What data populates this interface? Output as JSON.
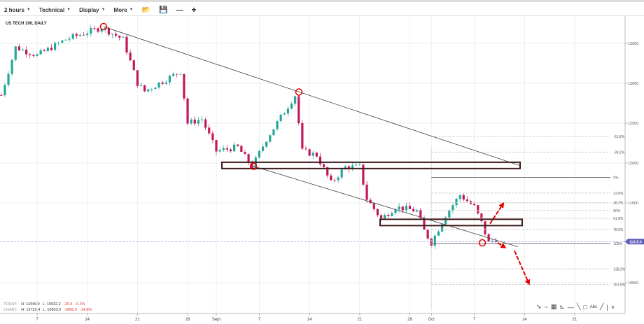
{
  "toolbar": {
    "timeframe": "2 hours",
    "technical": "Technical",
    "display": "Display",
    "more": "More",
    "icons": [
      "folder-open-icon",
      "save-icon",
      "minus-icon",
      "plus-icon"
    ]
  },
  "chart_title": "US TECH 100, DAILY",
  "stats": {
    "today_label": "TODAY:",
    "today_h": "H: 11049.9",
    "today_l": "L: 10932.2",
    "today_chg": "-29.4",
    "today_pct": "-0.3%",
    "chart_label": "CHART:",
    "chart_h": "H: 13722.4",
    "chart_l": "L: 10833.0",
    "chart_chg": "-1886.5",
    "chart_pct": "-14.6%"
  },
  "colors": {
    "up": "#26a69a",
    "down": "#c2185b",
    "annotation": "#e00000",
    "box": "#3b1a1a",
    "price_tag": "#5c5cb8"
  },
  "drawing_tools": [
    "arrow-icon",
    "curve-icon",
    "grid-icon",
    "fan-icon",
    "horizontal-line-icon",
    "trend-line-icon",
    "rectangle-icon",
    "text-icon",
    "line-icon",
    "divider",
    "close-icon"
  ],
  "drawing_tool_glyphs": [
    "➘",
    "~",
    "▦",
    "⊾",
    "—",
    "╲",
    "□",
    "Abc",
    "╱",
    "|",
    "×"
  ],
  "chart_data": {
    "type": "candlestick",
    "title": "US TECH 100, DAILY",
    "y_ticks": [
      13500,
      13000,
      12500,
      12000,
      11500,
      10500
    ],
    "x_ticks": [
      {
        "label": "7",
        "date": "2017-08-07"
      },
      {
        "label": "14",
        "date": "2017-08-14"
      },
      {
        "label": "21",
        "date": "2017-08-21"
      },
      {
        "label": "28",
        "date": "2017-08-28"
      },
      {
        "label": "Sept",
        "date": "2017-09-01"
      },
      {
        "label": "7",
        "date": "2017-09-07"
      },
      {
        "label": "14",
        "date": "2017-09-14"
      },
      {
        "label": "21",
        "date": "2017-09-21"
      },
      {
        "label": "28",
        "date": "2017-09-28"
      },
      {
        "label": "Oct",
        "date": "2017-10-01"
      },
      {
        "label": "7",
        "date": "2017-10-07"
      },
      {
        "label": "14",
        "date": "2017-10-14"
      },
      {
        "label": "21",
        "date": "2017-10-21"
      }
    ],
    "price_path": [
      [
        "2017-08-02",
        12850
      ],
      [
        "2017-08-04",
        13450
      ],
      [
        "2017-08-07",
        13350
      ],
      [
        "2017-08-11",
        13550
      ],
      [
        "2017-08-16",
        13700
      ],
      [
        "2017-08-19",
        13550
      ],
      [
        "2017-08-21",
        13000
      ],
      [
        "2017-08-22",
        12900
      ],
      [
        "2017-08-27",
        13150
      ],
      [
        "2017-08-28",
        12500
      ],
      [
        "2017-08-30",
        12550
      ],
      [
        "2017-09-01",
        12150
      ],
      [
        "2017-09-04",
        12200
      ],
      [
        "2017-09-06",
        11950
      ],
      [
        "2017-09-08",
        12300
      ],
      [
        "2017-09-12",
        12850
      ],
      [
        "2017-09-13",
        12150
      ],
      [
        "2017-09-15",
        12100
      ],
      [
        "2017-09-17",
        11750
      ],
      [
        "2017-09-19",
        11950
      ],
      [
        "2017-09-21",
        11950
      ],
      [
        "2017-09-22",
        11550
      ],
      [
        "2017-09-24",
        11300
      ],
      [
        "2017-09-26",
        11450
      ],
      [
        "2017-09-29",
        11400
      ],
      [
        "2017-09-30",
        11150
      ],
      [
        "2017-10-01",
        11000
      ],
      [
        "2017-10-03",
        11350
      ],
      [
        "2017-10-05",
        11600
      ],
      [
        "2017-10-07",
        11450
      ],
      [
        "2017-10-08",
        11250
      ],
      [
        "2017-10-09",
        11000
      ],
      [
        "2017-10-10",
        11050
      ]
    ],
    "last_price": "11015.0",
    "fib_levels": [
      "-61.8%",
      "-38.2%",
      "0%",
      "23.6%",
      "38.2%",
      "50%",
      "61.8%",
      "78.6%",
      "100%",
      "138.2%",
      "161.8%"
    ],
    "fib_range": [
      11820,
      10990
    ],
    "grid": true
  }
}
